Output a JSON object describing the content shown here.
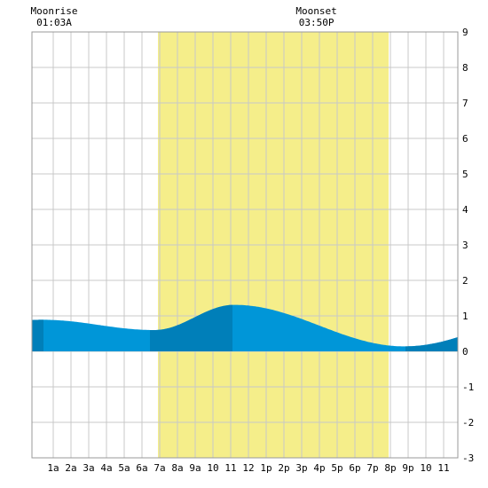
{
  "moon": {
    "rise_label": "Moonrise",
    "rise_time": "01:03A",
    "rise_hour": 1.05,
    "set_label": "Moonset",
    "set_time": "03:50P",
    "set_hour": 15.83
  },
  "colors": {
    "daylight": "#f5ee8a",
    "tide_light": "#0096d8",
    "tide_dark": "#007fb9",
    "grid": "#c8c8c8",
    "frame": "#999999"
  },
  "chart_data": {
    "type": "area",
    "title": "",
    "xlabel": "",
    "ylabel": "",
    "xlim": [
      -0.2,
      23.8
    ],
    "ylim": [
      -3,
      9
    ],
    "y_ticks": [
      "-3",
      "-2",
      "-1",
      "0",
      "1",
      "2",
      "3",
      "4",
      "5",
      "6",
      "7",
      "8",
      "9"
    ],
    "x_ticks": [
      {
        "hour": 1,
        "label": "1a"
      },
      {
        "hour": 2,
        "label": "2a"
      },
      {
        "hour": 3,
        "label": "3a"
      },
      {
        "hour": 4,
        "label": "4a"
      },
      {
        "hour": 5,
        "label": "5a"
      },
      {
        "hour": 6,
        "label": "6a"
      },
      {
        "hour": 7,
        "label": "7a"
      },
      {
        "hour": 8,
        "label": "8a"
      },
      {
        "hour": 9,
        "label": "9a"
      },
      {
        "hour": 10,
        "label": "10"
      },
      {
        "hour": 11,
        "label": "11"
      },
      {
        "hour": 12,
        "label": "12"
      },
      {
        "hour": 13,
        "label": "1p"
      },
      {
        "hour": 14,
        "label": "2p"
      },
      {
        "hour": 15,
        "label": "3p"
      },
      {
        "hour": 16,
        "label": "4p"
      },
      {
        "hour": 17,
        "label": "5p"
      },
      {
        "hour": 18,
        "label": "6p"
      },
      {
        "hour": 19,
        "label": "7p"
      },
      {
        "hour": 20,
        "label": "8p"
      },
      {
        "hour": 21,
        "label": "9p"
      },
      {
        "hour": 22,
        "label": "10"
      },
      {
        "hour": 23,
        "label": "11"
      }
    ],
    "daylight": {
      "start_hour": 6.9,
      "end_hour": 19.9
    },
    "tide_extremes": [
      {
        "hour": 0.4,
        "height": 0.89,
        "type": "high"
      },
      {
        "hour": 6.7,
        "height": 0.6,
        "type": "low"
      },
      {
        "hour": 11.2,
        "height": 1.31,
        "type": "high"
      },
      {
        "hour": 20.8,
        "height": 0.14,
        "type": "low"
      }
    ],
    "dark_bands": [
      {
        "start_hour": -0.2,
        "end_hour": 0.45
      },
      {
        "start_hour": 6.45,
        "end_hour": 11.1
      },
      {
        "start_hour": 20.85,
        "end_hour": 23.8
      }
    ]
  }
}
